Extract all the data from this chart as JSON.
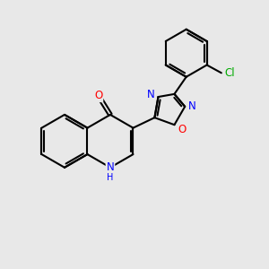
{
  "bg_color": "#e8e8e8",
  "bond_color": "#000000",
  "bond_width": 1.5,
  "atom_colors": {
    "N": "#0000ff",
    "O": "#ff0000",
    "Cl": "#00aa00"
  },
  "font_size": 8.5,
  "font_size_small": 7.0
}
